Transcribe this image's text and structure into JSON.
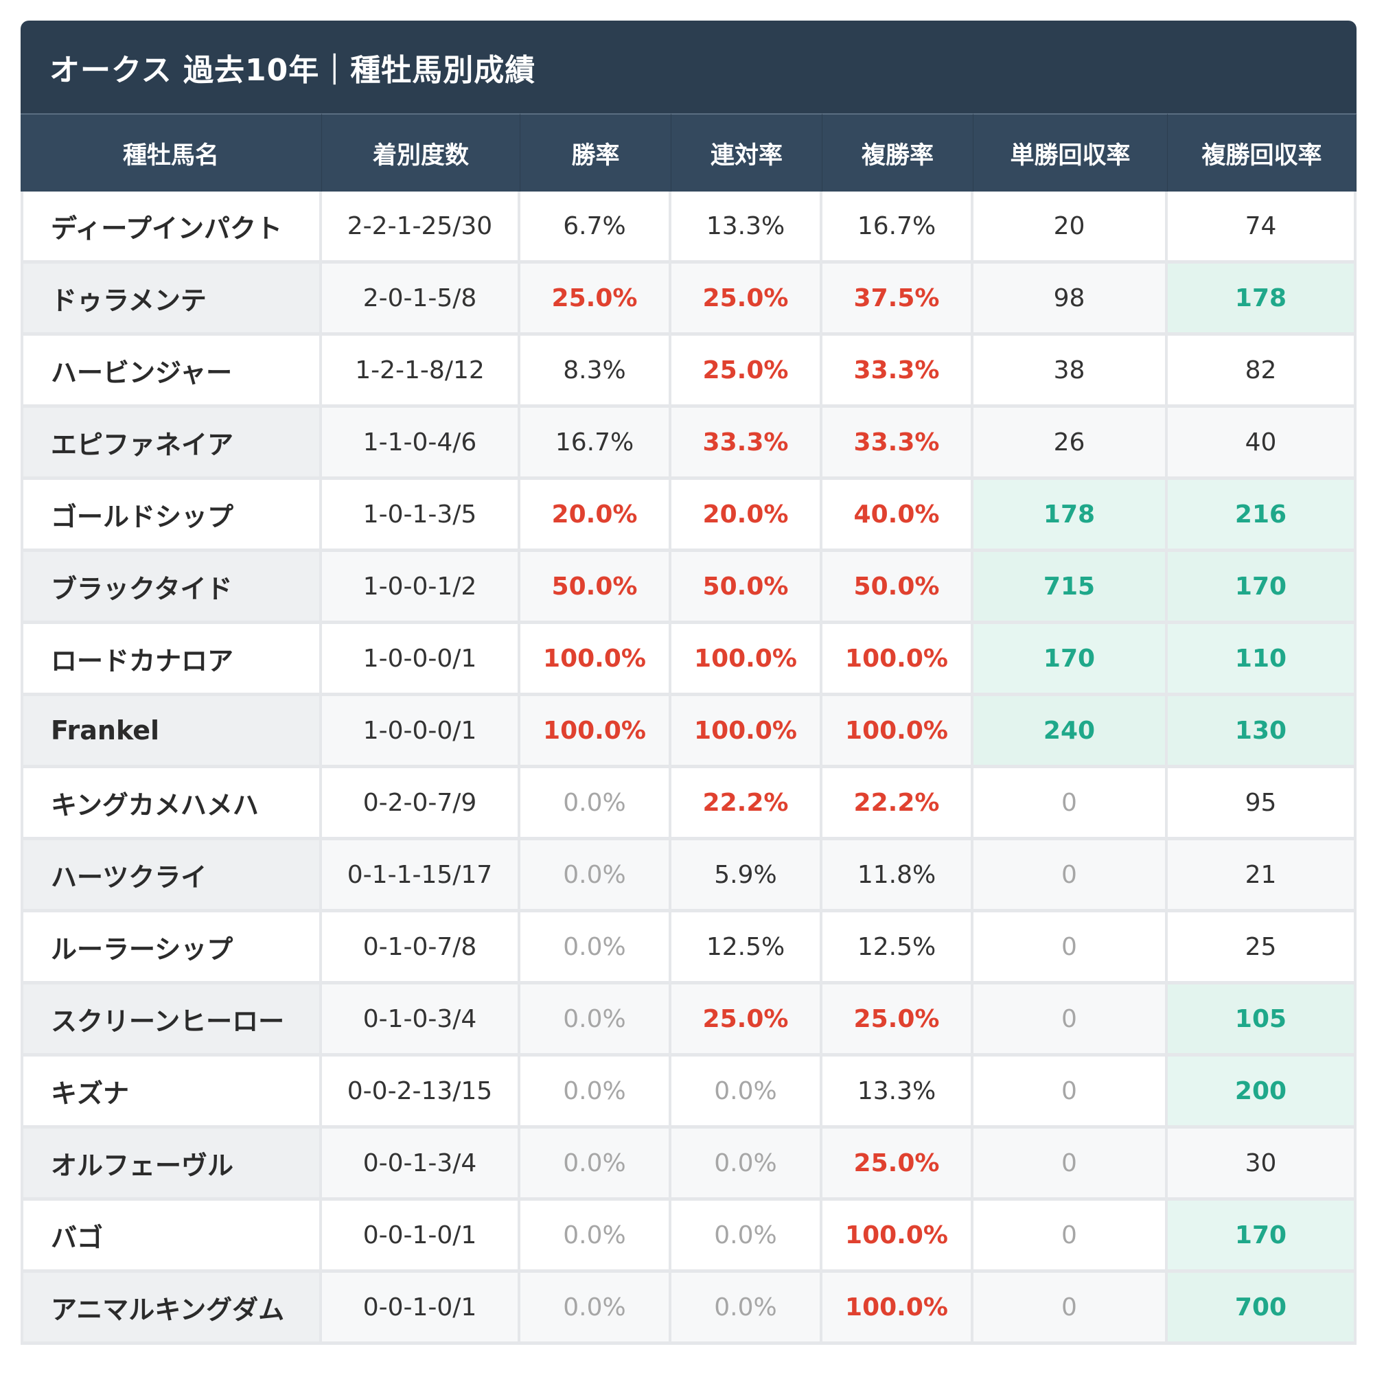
{
  "title": "オークス 過去10年｜種牡馬別成績",
  "columns": [
    "種牡馬名",
    "着別度数",
    "勝率",
    "連対率",
    "複勝率",
    "単勝回収率",
    "複勝回収率"
  ],
  "rows": [
    {
      "name": "ディープインパクト",
      "record": "2-2-1-25/30",
      "win": "6.7%",
      "quinella": "13.3%",
      "place": "16.7%",
      "win_return": "20",
      "place_return": "74"
    },
    {
      "name": "ドゥラメンテ",
      "record": "2-0-1-5/8",
      "win": "25.0%",
      "quinella": "25.0%",
      "place": "37.5%",
      "win_return": "98",
      "place_return": "178"
    },
    {
      "name": "ハービンジャー",
      "record": "1-2-1-8/12",
      "win": "8.3%",
      "quinella": "25.0%",
      "place": "33.3%",
      "win_return": "38",
      "place_return": "82"
    },
    {
      "name": "エピファネイア",
      "record": "1-1-0-4/6",
      "win": "16.7%",
      "quinella": "33.3%",
      "place": "33.3%",
      "win_return": "26",
      "place_return": "40"
    },
    {
      "name": "ゴールドシップ",
      "record": "1-0-1-3/5",
      "win": "20.0%",
      "quinella": "20.0%",
      "place": "40.0%",
      "win_return": "178",
      "place_return": "216"
    },
    {
      "name": "ブラックタイド",
      "record": "1-0-0-1/2",
      "win": "50.0%",
      "quinella": "50.0%",
      "place": "50.0%",
      "win_return": "715",
      "place_return": "170"
    },
    {
      "name": "ロードカナロア",
      "record": "1-0-0-0/1",
      "win": "100.0%",
      "quinella": "100.0%",
      "place": "100.0%",
      "win_return": "170",
      "place_return": "110"
    },
    {
      "name": "Frankel",
      "record": "1-0-0-0/1",
      "win": "100.0%",
      "quinella": "100.0%",
      "place": "100.0%",
      "win_return": "240",
      "place_return": "130"
    },
    {
      "name": "キングカメハメハ",
      "record": "0-2-0-7/9",
      "win": "0.0%",
      "quinella": "22.2%",
      "place": "22.2%",
      "win_return": "0",
      "place_return": "95"
    },
    {
      "name": "ハーツクライ",
      "record": "0-1-1-15/17",
      "win": "0.0%",
      "quinella": "5.9%",
      "place": "11.8%",
      "win_return": "0",
      "place_return": "21"
    },
    {
      "name": "ルーラーシップ",
      "record": "0-1-0-7/8",
      "win": "0.0%",
      "quinella": "12.5%",
      "place": "12.5%",
      "win_return": "0",
      "place_return": "25"
    },
    {
      "name": "スクリーンヒーロー",
      "record": "0-1-0-3/4",
      "win": "0.0%",
      "quinella": "25.0%",
      "place": "25.0%",
      "win_return": "0",
      "place_return": "105"
    },
    {
      "name": "キズナ",
      "record": "0-0-2-13/15",
      "win": "0.0%",
      "quinella": "0.0%",
      "place": "13.3%",
      "win_return": "0",
      "place_return": "200"
    },
    {
      "name": "オルフェーヴル",
      "record": "0-0-1-3/4",
      "win": "0.0%",
      "quinella": "0.0%",
      "place": "25.0%",
      "win_return": "0",
      "place_return": "30"
    },
    {
      "name": "バゴ",
      "record": "0-0-1-0/1",
      "win": "0.0%",
      "quinella": "0.0%",
      "place": "100.0%",
      "win_return": "0",
      "place_return": "170"
    },
    {
      "name": "アニマルキングダム",
      "record": "0-0-1-0/1",
      "win": "0.0%",
      "quinella": "0.0%",
      "place": "100.0%",
      "win_return": "0",
      "place_return": "700"
    }
  ],
  "colors": {
    "header_bg": "#2c3e50",
    "high_rate": "#e0412f",
    "zero_rate": "#a6a6a6",
    "high_return_text": "#1fa88a",
    "high_return_bg": "#e6f6f1"
  }
}
